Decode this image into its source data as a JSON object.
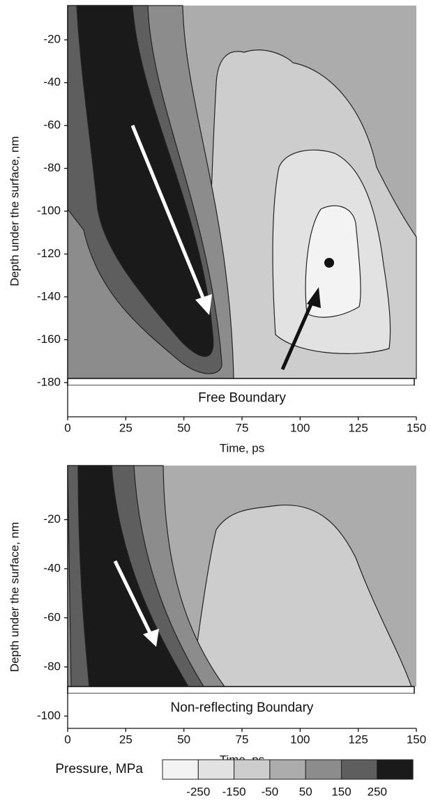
{
  "colorbar": {
    "label": "Pressure, MPa",
    "ticks": [
      -250,
      -150,
      -50,
      50,
      150,
      250
    ],
    "colors": [
      "#f3f3f3",
      "#e2e2e2",
      "#cdcdcd",
      "#acacac",
      "#8c8c8c",
      "#5e5e5e",
      "#1a1a1a"
    ]
  },
  "chart_data": [
    {
      "type": "contour",
      "xlabel": "Time, ps",
      "ylabel": "Depth under the surface, nm",
      "annotation": "Free Boundary",
      "xlim": [
        0,
        150
      ],
      "xticks": [
        0,
        25,
        50,
        75,
        100,
        125,
        150
      ],
      "ylim": [
        -196,
        -4
      ],
      "yticks": [
        -20,
        -40,
        -60,
        -80,
        -100,
        -120,
        -140,
        -160,
        -180
      ]
    },
    {
      "type": "contour",
      "xlabel": "Time, ps",
      "ylabel": "Depth under the surface, nm",
      "annotation": "Non-reflecting Boundary",
      "xlim": [
        0,
        150
      ],
      "xticks": [
        0,
        25,
        50,
        75,
        100,
        125,
        150
      ],
      "ylim": [
        -105,
        2
      ],
      "yticks": [
        -20,
        -40,
        -60,
        -80,
        -100
      ]
    }
  ]
}
